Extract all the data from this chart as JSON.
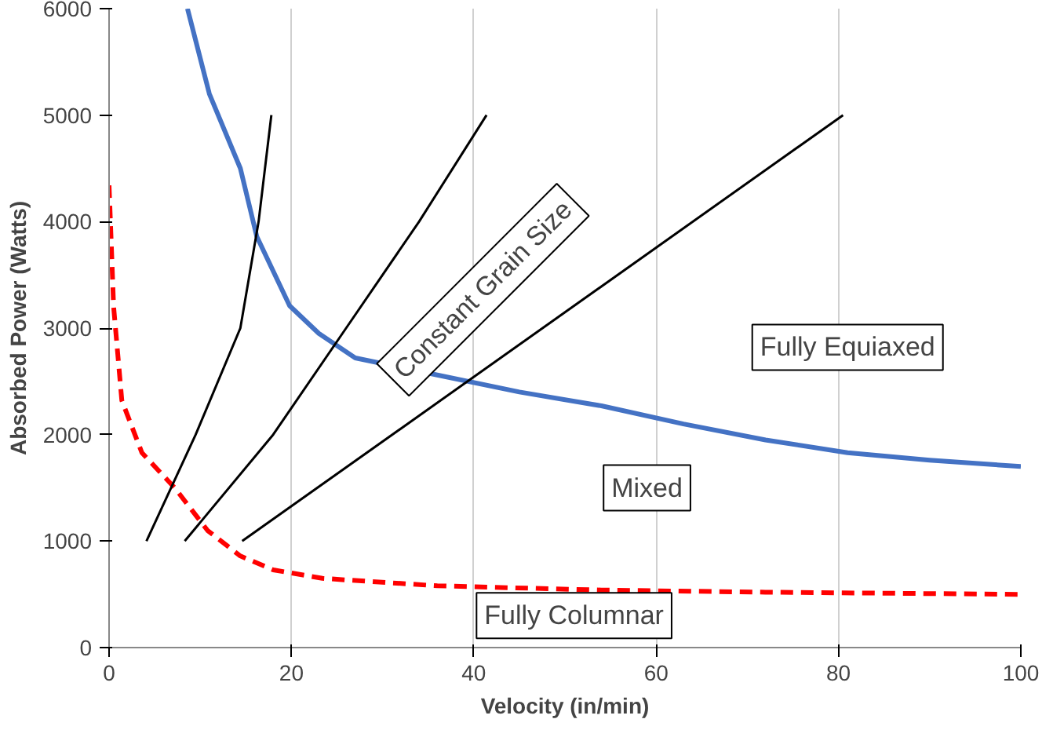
{
  "chart_data": {
    "type": "line",
    "xlabel": "Velocity (in/min)",
    "ylabel": "Absorbed Power (Watts)",
    "xlim": [
      0,
      100
    ],
    "ylim": [
      0,
      6000
    ],
    "xticks": [
      0,
      20,
      40,
      60,
      80,
      100
    ],
    "yticks": [
      0,
      1000,
      2000,
      3000,
      4000,
      5000,
      6000
    ],
    "grid": "x",
    "series": [
      {
        "color": "#4472c4",
        "x": [
          8.6,
          11,
          14.4,
          16.2,
          19.8,
          23,
          27,
          36,
          45,
          54,
          63,
          72,
          81,
          90,
          100
        ],
        "values": [
          6000,
          5200,
          4500,
          3860,
          3210,
          2950,
          2720,
          2560,
          2400,
          2270,
          2100,
          1950,
          1830,
          1760,
          1700
        ]
      },
      {
        "color": "#ff0000",
        "line_style": "dashed",
        "x": [
          0,
          0.5,
          1.4,
          3.6,
          7.2,
          10.8,
          14.4,
          18,
          23.4,
          36,
          54,
          72,
          100
        ],
        "values": [
          4340,
          3200,
          2320,
          1830,
          1500,
          1100,
          860,
          730,
          650,
          580,
          540,
          520,
          500
        ]
      },
      {
        "color": "#000000",
        "x": [
          4.1,
          9.5,
          14.4,
          16.4,
          17.8
        ],
        "values": [
          1000,
          2000,
          3000,
          4000,
          5000
        ]
      },
      {
        "color": "#000000",
        "x": [
          8.3,
          18,
          26,
          34,
          41.4
        ],
        "values": [
          1000,
          2000,
          3000,
          4000,
          5000
        ]
      },
      {
        "color": "#000000",
        "x": [
          14.6,
          80.5
        ],
        "values": [
          1000,
          5000
        ]
      }
    ],
    "annotations": [
      "Constant Grain Size",
      "Fully Equiaxed",
      "Mixed",
      "Fully Columnar"
    ]
  }
}
